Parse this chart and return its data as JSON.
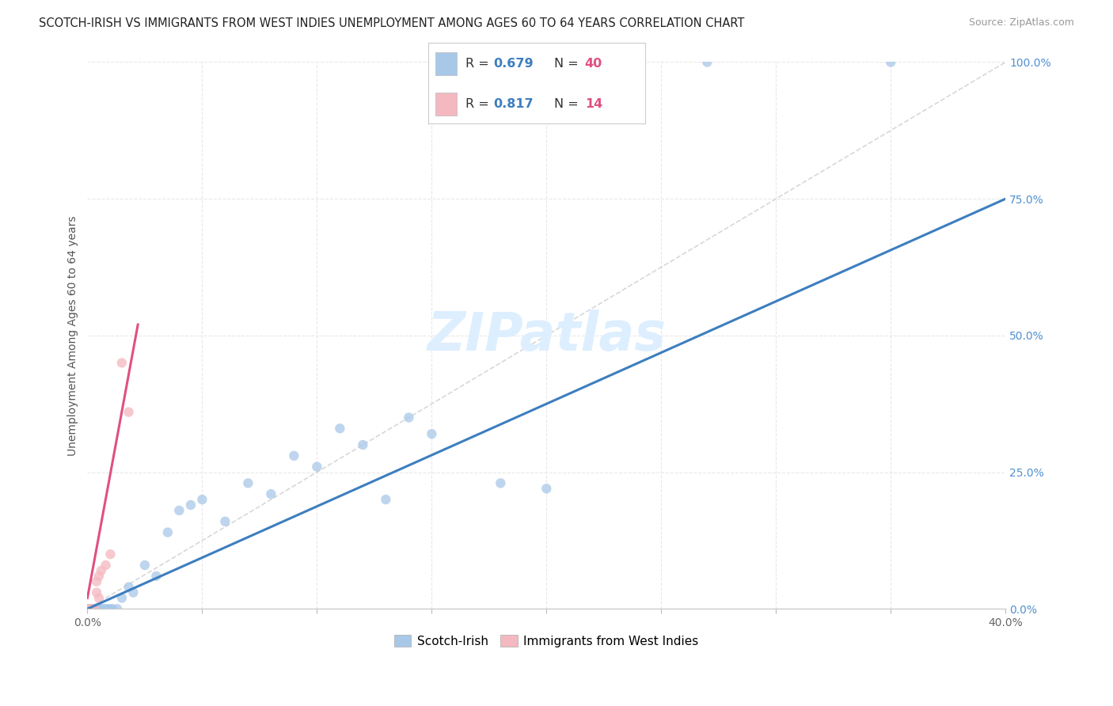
{
  "title": "SCOTCH-IRISH VS IMMIGRANTS FROM WEST INDIES UNEMPLOYMENT AMONG AGES 60 TO 64 YEARS CORRELATION CHART",
  "source": "Source: ZipAtlas.com",
  "ylabel": "Unemployment Among Ages 60 to 64 years",
  "y_tick_labels_right": [
    "0.0%",
    "25.0%",
    "50.0%",
    "75.0%",
    "100.0%"
  ],
  "y_ticks_right": [
    0.0,
    25.0,
    50.0,
    75.0,
    100.0
  ],
  "xlim": [
    0.0,
    40.0
  ],
  "ylim": [
    0.0,
    100.0
  ],
  "blue_R": 0.679,
  "blue_N": 40,
  "pink_R": 0.817,
  "pink_N": 14,
  "blue_color": "#a8c8e8",
  "blue_line_color": "#3d7ebf",
  "pink_color": "#f4b8c0",
  "pink_line_color": "#e05080",
  "ref_line_color": "#d8d8d8",
  "background_color": "#ffffff",
  "grid_color": "#e8e8e8",
  "watermark_color": "#ddeeff",
  "legend_R_color": "#3d7ebf",
  "legend_N_color": "#e05080",
  "scotch_irish_points": [
    [
      0.0,
      0.0
    ],
    [
      0.0,
      0.0
    ],
    [
      0.0,
      0.0
    ],
    [
      0.0,
      0.0
    ],
    [
      0.0,
      0.0
    ],
    [
      0.1,
      0.0
    ],
    [
      0.2,
      0.0
    ],
    [
      0.3,
      0.0
    ],
    [
      0.4,
      0.0
    ],
    [
      0.5,
      0.0
    ],
    [
      0.6,
      0.0
    ],
    [
      0.7,
      0.0
    ],
    [
      0.8,
      0.0
    ],
    [
      0.9,
      0.0
    ],
    [
      1.0,
      0.0
    ],
    [
      1.1,
      0.0
    ],
    [
      1.3,
      0.0
    ],
    [
      1.5,
      2.0
    ],
    [
      1.8,
      4.0
    ],
    [
      2.0,
      3.0
    ],
    [
      2.5,
      8.0
    ],
    [
      3.0,
      6.0
    ],
    [
      3.5,
      14.0
    ],
    [
      4.0,
      18.0
    ],
    [
      4.5,
      19.0
    ],
    [
      5.0,
      20.0
    ],
    [
      6.0,
      16.0
    ],
    [
      7.0,
      23.0
    ],
    [
      8.0,
      21.0
    ],
    [
      9.0,
      28.0
    ],
    [
      10.0,
      26.0
    ],
    [
      11.0,
      33.0
    ],
    [
      12.0,
      30.0
    ],
    [
      13.0,
      20.0
    ],
    [
      14.0,
      35.0
    ],
    [
      15.0,
      32.0
    ],
    [
      18.0,
      23.0
    ],
    [
      20.0,
      22.0
    ],
    [
      27.0,
      100.0
    ],
    [
      35.0,
      100.0
    ]
  ],
  "west_indies_points": [
    [
      0.0,
      0.0
    ],
    [
      0.0,
      0.0
    ],
    [
      0.1,
      0.0
    ],
    [
      0.2,
      0.0
    ],
    [
      0.3,
      0.0
    ],
    [
      0.4,
      5.0
    ],
    [
      0.5,
      6.0
    ],
    [
      0.6,
      7.0
    ],
    [
      0.8,
      8.0
    ],
    [
      1.0,
      10.0
    ],
    [
      1.5,
      45.0
    ],
    [
      1.8,
      36.0
    ],
    [
      0.4,
      3.0
    ],
    [
      0.5,
      2.0
    ]
  ],
  "blue_regline_x": [
    0.0,
    40.0
  ],
  "blue_regline_y": [
    0.0,
    75.0
  ],
  "pink_regline_x": [
    0.0,
    2.2
  ],
  "pink_regline_y": [
    2.0,
    52.0
  ],
  "ref_line_x": [
    0.0,
    40.0
  ],
  "ref_line_y": [
    0.0,
    100.0
  ],
  "title_fontsize": 10.5,
  "source_fontsize": 9,
  "axis_label_fontsize": 10,
  "tick_fontsize": 10,
  "right_tick_color": "#5090d0"
}
